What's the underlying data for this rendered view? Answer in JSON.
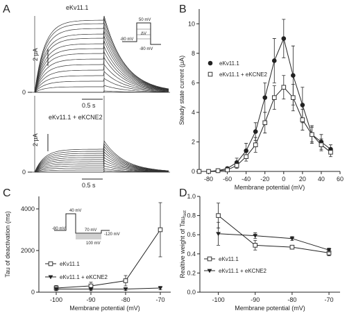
{
  "panel_labels": [
    "A",
    "B",
    "C",
    "D"
  ],
  "panelA": {
    "top_title": "eKv11.1",
    "bottom_title": "eKv11.1 + eKCNE2",
    "scale_current": "2 μA",
    "scale_time": "0.5 s",
    "zero_label": "0",
    "inset_protocol": {
      "top": "50 mV",
      "bottom": "-80 mV",
      "left": "-80 mV",
      "step": "ΔV"
    }
  },
  "chart_data": [
    {
      "panel": "B",
      "type": "line",
      "xlabel": "Membrane potential (mV)",
      "ylabel": "Steady state current (μA)",
      "xlim": [
        -90,
        60
      ],
      "ylim": [
        0,
        11
      ],
      "xticks": [
        -80,
        -60,
        -40,
        -20,
        0,
        20,
        40,
        60
      ],
      "yticks": [
        0,
        2,
        4,
        6,
        8,
        10
      ],
      "legend": "top-left",
      "x": [
        -90,
        -80,
        -70,
        -60,
        -50,
        -40,
        -30,
        -20,
        -10,
        0,
        10,
        20,
        30,
        40,
        50
      ],
      "series": [
        {
          "name": "eKv11.1",
          "marker": "filled-circle",
          "values": [
            0,
            0,
            0.05,
            0.2,
            0.6,
            1.4,
            2.7,
            5.0,
            7.5,
            9.0,
            6.5,
            4.5,
            2.5,
            2.0,
            1.5
          ],
          "errors": [
            0,
            0,
            0,
            0.1,
            0.3,
            0.5,
            0.6,
            1.0,
            1.5,
            1.3,
            2.0,
            1.2,
            0.6,
            0.5,
            0.3
          ]
        },
        {
          "name": "eKv11.1 + eKCNE2",
          "marker": "open-square",
          "values": [
            0,
            0,
            0.05,
            0.1,
            0.4,
            1.0,
            1.8,
            3.3,
            5.0,
            5.7,
            5.0,
            3.5,
            2.5,
            1.8,
            1.3
          ],
          "errors": [
            0,
            0,
            0,
            0.1,
            0.2,
            0.3,
            0.5,
            0.7,
            0.8,
            0.8,
            0.9,
            0.7,
            0.5,
            0.4,
            0.3
          ]
        }
      ]
    },
    {
      "panel": "C",
      "type": "line",
      "xlabel": "Membrane potential (mV)",
      "ylabel": "Tau of deactivation (ms)",
      "xlim": [
        -105,
        -67
      ],
      "ylim": [
        0,
        4600
      ],
      "xticks": [
        -100,
        -90,
        -80,
        -70
      ],
      "yticks": [
        0,
        2000,
        4000
      ],
      "legend": "center-left",
      "x": [
        -100,
        -90,
        -80,
        -70
      ],
      "series": [
        {
          "name": "eKv11.1",
          "marker": "open-square",
          "values": [
            200,
            300,
            550,
            3000
          ],
          "errors": [
            120,
            180,
            250,
            1300
          ]
        },
        {
          "name": "eKv11.1 + eKCNE2",
          "marker": "filled-triangle-down",
          "values": [
            150,
            150,
            150,
            200
          ],
          "errors": [
            80,
            80,
            60,
            80
          ]
        }
      ],
      "inset_protocol": {
        "top": "40 mV",
        "left": "-80 mV",
        "step_top": "70 mV",
        "step_bottom": "100 mV",
        "end": "-120 mV"
      }
    },
    {
      "panel": "D",
      "type": "line",
      "xlabel": "Membrane potential (mV)",
      "ylabel_main": "Realtive weight of Tau",
      "ylabel_sub": "fast",
      "xlim": [
        -105,
        -67
      ],
      "ylim": [
        0,
        1.0
      ],
      "xticks": [
        -100,
        -90,
        -80,
        -70
      ],
      "yticks": [
        0.0,
        0.2,
        0.4,
        0.6,
        0.8,
        1.0
      ],
      "legend": "center-left",
      "x": [
        -100,
        -90,
        -80,
        -70
      ],
      "series": [
        {
          "name": "eKv11.1",
          "marker": "open-square",
          "values": [
            0.8,
            0.49,
            0.47,
            0.41
          ],
          "errors": [
            0.13,
            0.05,
            0.02,
            0.03
          ]
        },
        {
          "name": "eKv11.1 + eKCNE2",
          "marker": "filled-triangle-down",
          "values": [
            0.61,
            0.59,
            0.56,
            0.44
          ],
          "errors": [
            0.12,
            0.03,
            0.02,
            0.02
          ]
        }
      ]
    }
  ]
}
